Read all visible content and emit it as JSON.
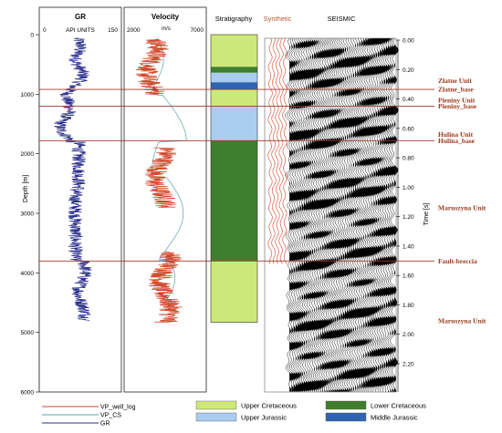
{
  "tracks": {
    "gr": {
      "title": "GR",
      "scale_left": "0",
      "scale_unit": "API UNITS",
      "scale_right": "150"
    },
    "velocity": {
      "title": "Velocity",
      "scale_left": "2000",
      "scale_unit": "m/s",
      "scale_right": "7000"
    },
    "stratigraphy": {
      "title": "Stratigraphy"
    },
    "synthetic": {
      "title": "Synthetic"
    },
    "seismic": {
      "title": "SEISMIC"
    }
  },
  "depth_axis": {
    "label": "Depth [m]",
    "ticks": [
      "0",
      "1000",
      "2000",
      "3000",
      "4000",
      "5000",
      "6000"
    ]
  },
  "time_axis": {
    "label": "Time [s]",
    "ticks": [
      "0.00",
      "0.20",
      "0.40",
      "0.60",
      "0.80",
      "1.00",
      "1.20",
      "1.40",
      "1.60",
      "1.80",
      "2.00",
      "2.20"
    ]
  },
  "horizons": [
    {
      "label": "Złatne_base",
      "depth_m": 920
    },
    {
      "label": "Pieniny_base",
      "depth_m": 1200
    },
    {
      "label": "Hulina_base",
      "depth_m": 1780
    },
    {
      "label": "Fault-breccia",
      "depth_m": 3800
    }
  ],
  "unit_labels": [
    {
      "label": "Złatne Unit",
      "time_s": 0.275
    },
    {
      "label": "Pieniny Unit",
      "time_s": 0.41
    },
    {
      "label": "Hulina Unit",
      "time_s": 0.64
    },
    {
      "label": "Maruszyna Unit",
      "time_s": 1.14
    },
    {
      "label": "Maruszyna Unit",
      "time_s": 1.91
    }
  ],
  "stratigraphy_column": [
    {
      "unit": "Upper Cretaceous",
      "top_m": 0,
      "base_m": 540
    },
    {
      "unit": "Lower Cretaceous",
      "top_m": 540,
      "base_m": 640
    },
    {
      "unit": "Upper Jurassic",
      "top_m": 640,
      "base_m": 800
    },
    {
      "unit": "Middle Jurassic",
      "top_m": 800,
      "base_m": 920
    },
    {
      "unit": "Upper Cretaceous",
      "top_m": 920,
      "base_m": 1200
    },
    {
      "unit": "Upper Jurassic",
      "top_m": 1200,
      "base_m": 1780
    },
    {
      "unit": "Lower Cretaceous",
      "top_m": 1780,
      "base_m": 3800
    },
    {
      "unit": "Upper Cretaceous",
      "top_m": 3800,
      "base_m": 4830
    }
  ],
  "colors": {
    "horizon": "#a0372b",
    "horizon_text": "#9a3a1c",
    "vp_well_log": "#d2462a",
    "vp_cs": "#5aa3a8",
    "gr": "#2a2f8c",
    "Upper Cretaceous": "#cde87a",
    "Lower Cretaceous": "#3e7f2d",
    "Upper Jurassic": "#a9cdee",
    "Middle Jurassic": "#2f64b0",
    "synthetic_title": "#b8572e"
  },
  "legend": {
    "lines": [
      {
        "label": "VP_well_log",
        "color_key": "vp_well_log"
      },
      {
        "label": "VP_CS",
        "color_key": "vp_cs"
      },
      {
        "label": "GR",
        "color_key": "gr"
      }
    ],
    "units": [
      "Upper Cretaceous",
      "Lower Cretaceous",
      "Upper Jurassic",
      "Middle Jurassic"
    ]
  }
}
